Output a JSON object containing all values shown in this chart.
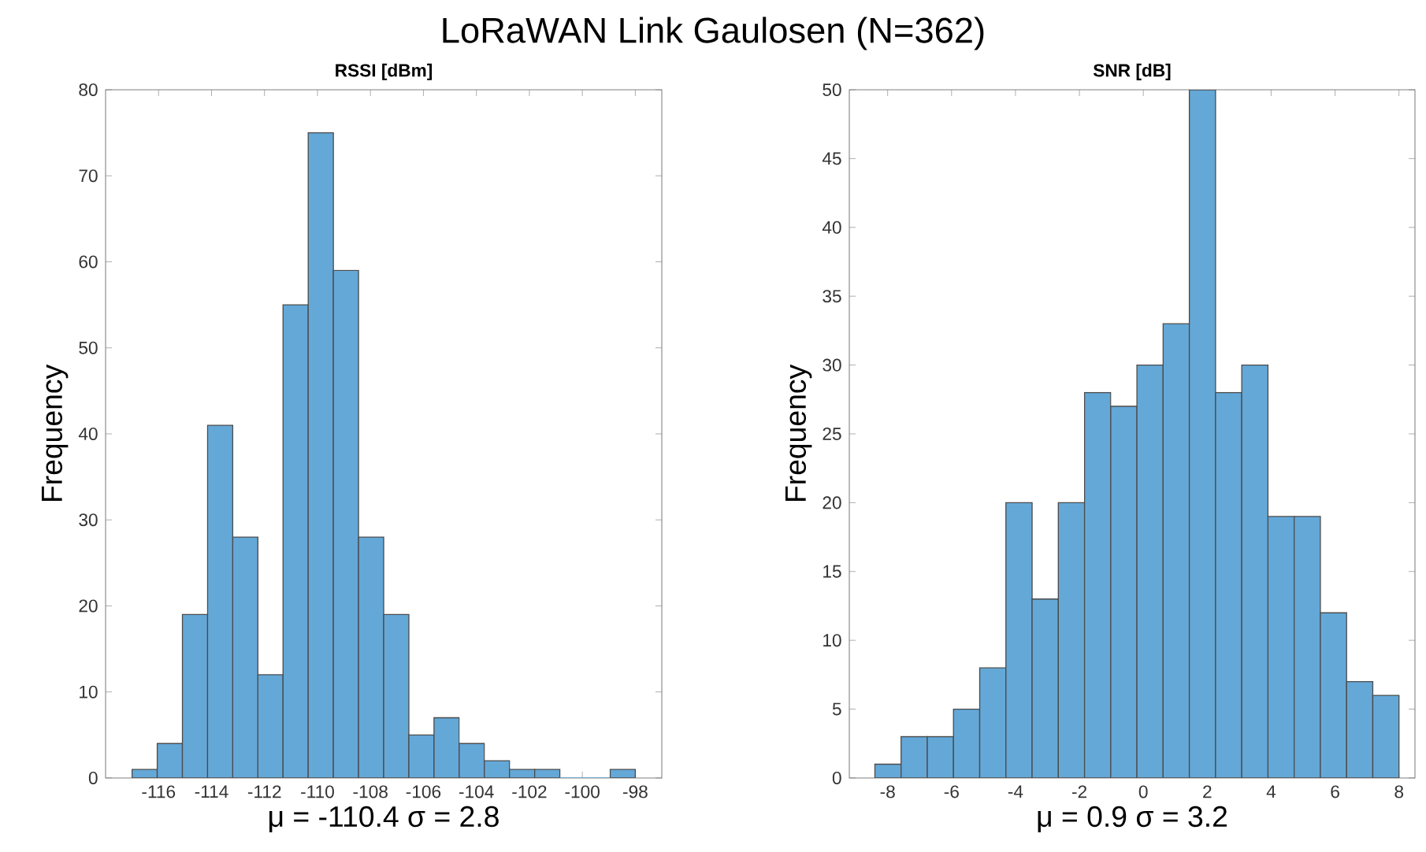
{
  "chart_data": [
    {
      "type": "histogram",
      "title": "RSSI [dBm]",
      "xlabel": "μ = -110.4    σ = 2.8",
      "ylabel": "Frequency",
      "color": "#64a8d8",
      "annotations": [
        "LoRaWAN Link Gaulosen (N=362)"
      ],
      "bins": [
        -117,
        -116.05,
        -115.1,
        -114.15,
        -113.2,
        -112.25,
        -111.3,
        -110.35,
        -109.4,
        -108.45,
        -107.5,
        -106.55,
        -105.6,
        -104.65,
        -103.7,
        -102.75,
        -101.8,
        -100.85,
        -99.9,
        -98.95,
        -98
      ],
      "values": [
        1,
        4,
        19,
        41,
        28,
        12,
        55,
        75,
        59,
        28,
        19,
        5,
        7,
        4,
        2,
        1,
        1,
        0,
        0,
        1
      ],
      "xlim": [
        -118,
        -97
      ],
      "xticks": [
        -116,
        -114,
        -112,
        -110,
        -108,
        -106,
        -104,
        -102,
        -100,
        -98
      ],
      "ylim": [
        0,
        80
      ],
      "yticks": [
        0,
        10,
        20,
        30,
        40,
        50,
        60,
        70,
        80
      ]
    },
    {
      "type": "histogram",
      "title": "SNR [dB]",
      "xlabel": "μ = 0.9    σ = 3.2",
      "ylabel": "Frequency",
      "color": "#64a8d8",
      "bins": [
        -8.4,
        -7.58,
        -6.76,
        -5.94,
        -5.12,
        -4.3,
        -3.48,
        -2.66,
        -1.84,
        -1.02,
        -0.2,
        0.62,
        1.44,
        2.26,
        3.08,
        3.9,
        4.72,
        5.54,
        6.36,
        7.18,
        8.0
      ],
      "values": [
        1,
        3,
        3,
        5,
        8,
        20,
        13,
        20,
        28,
        27,
        30,
        33,
        50,
        28,
        30,
        19,
        19,
        12,
        7,
        6
      ],
      "xlim": [
        -9.2,
        8.5
      ],
      "xticks": [
        -8,
        -6,
        -4,
        -2,
        0,
        2,
        4,
        6,
        8
      ],
      "ylim": [
        0,
        50
      ],
      "yticks": [
        0,
        5,
        10,
        15,
        20,
        25,
        30,
        35,
        40,
        45,
        50
      ]
    }
  ]
}
